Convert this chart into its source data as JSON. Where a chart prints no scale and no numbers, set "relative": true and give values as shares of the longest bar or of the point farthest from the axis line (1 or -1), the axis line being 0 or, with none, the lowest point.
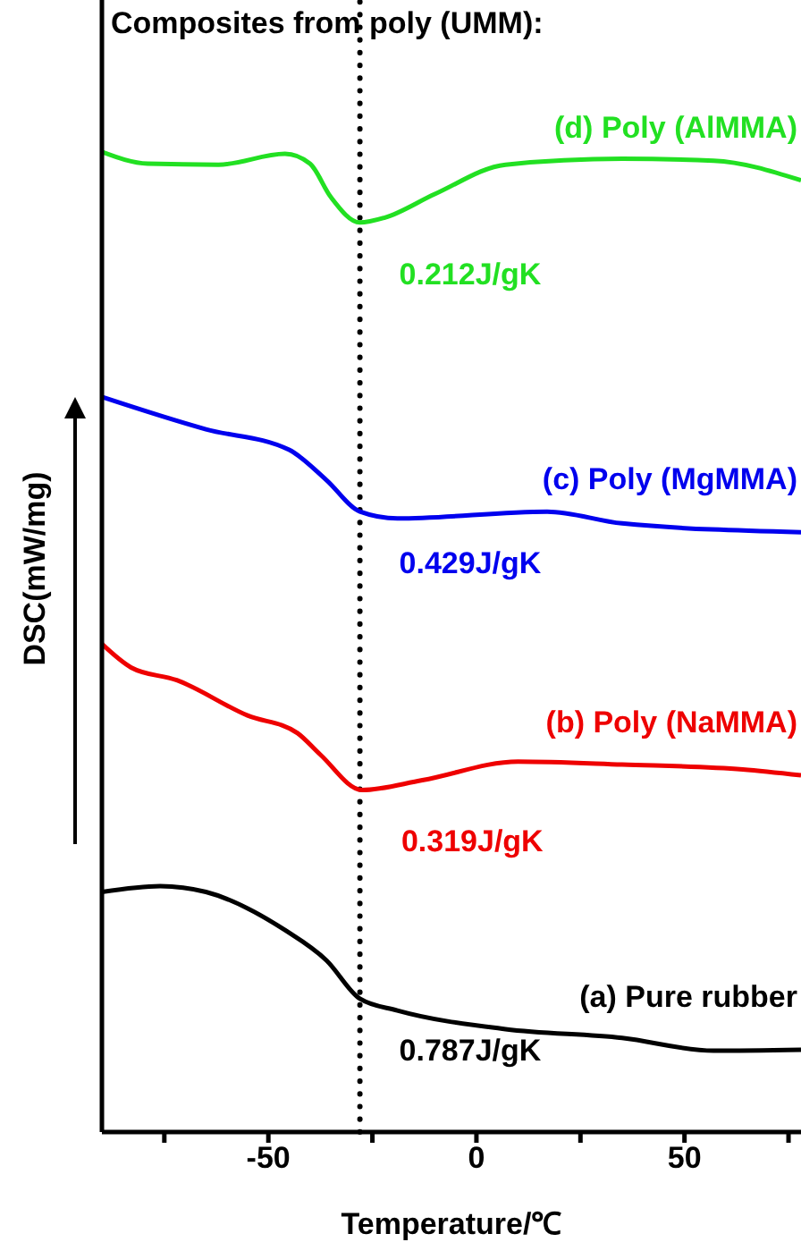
{
  "chart_data": {
    "type": "line",
    "title": "Composites from poly (UMM):",
    "xlabel": "Temperature/℃",
    "ylabel": "DSC(mW/mg)",
    "relative": true,
    "xlim": [
      -90,
      78
    ],
    "xticks": [
      {
        "value": -75,
        "label": null
      },
      -50,
      {
        "value": -25,
        "label": null
      },
      0,
      {
        "value": 25,
        "label": null
      },
      50,
      {
        "value": 75,
        "label": null
      }
    ],
    "series": [
      {
        "name": "(a) Pure rubber",
        "color": "#000000",
        "x": [
          -90,
          -76,
          -65,
          -46,
          -36,
          -28,
          -19,
          7,
          35,
          57,
          78
        ],
        "values": [
          0.245,
          0.251,
          0.245,
          0.206,
          0.175,
          0.136,
          0.124,
          0.105,
          0.096,
          0.083,
          0.084
        ]
      },
      {
        "name": "(b) Poly (NaMMA)",
        "color": "#ee0000",
        "x": [
          -90,
          -83,
          -72,
          -55,
          -43,
          -37.5,
          -27.5,
          -13,
          10,
          35,
          64,
          78
        ],
        "values": [
          0.498,
          0.474,
          0.461,
          0.425,
          0.407,
          0.385,
          0.349,
          0.359,
          0.378,
          0.375,
          0.37,
          0.364
        ]
      },
      {
        "name": "(c) Poly (MgMMA)",
        "color": "#0000ee",
        "x": [
          -90,
          -65,
          -45,
          -36,
          -28,
          -19,
          17,
          35,
          78
        ],
        "values": [
          0.75,
          0.717,
          0.696,
          0.665,
          0.633,
          0.626,
          0.633,
          0.621,
          0.612
        ]
      },
      {
        "name": "(d) Poly (AlMMA)",
        "color": "#22e022",
        "x": [
          -90,
          -79,
          -62,
          -46,
          -40,
          -35,
          -28,
          -22,
          -10,
          7,
          35,
          57,
          78
        ],
        "values": [
          1.0,
          0.988,
          0.987,
          0.998,
          0.988,
          0.954,
          0.928,
          0.933,
          0.957,
          0.987,
          0.993,
          0.991,
          0.971
        ]
      }
    ],
    "annotations": [
      "0.787J/gK",
      "0.319J/gK",
      "0.429J/gK",
      "0.212J/gK"
    ],
    "ref_lines": [
      {
        "axis": "x",
        "value": -28,
        "color": "#000000",
        "line_style": "dotted"
      }
    ],
    "grid": false,
    "legend": false,
    "marker": "none",
    "line_style": "solid"
  }
}
